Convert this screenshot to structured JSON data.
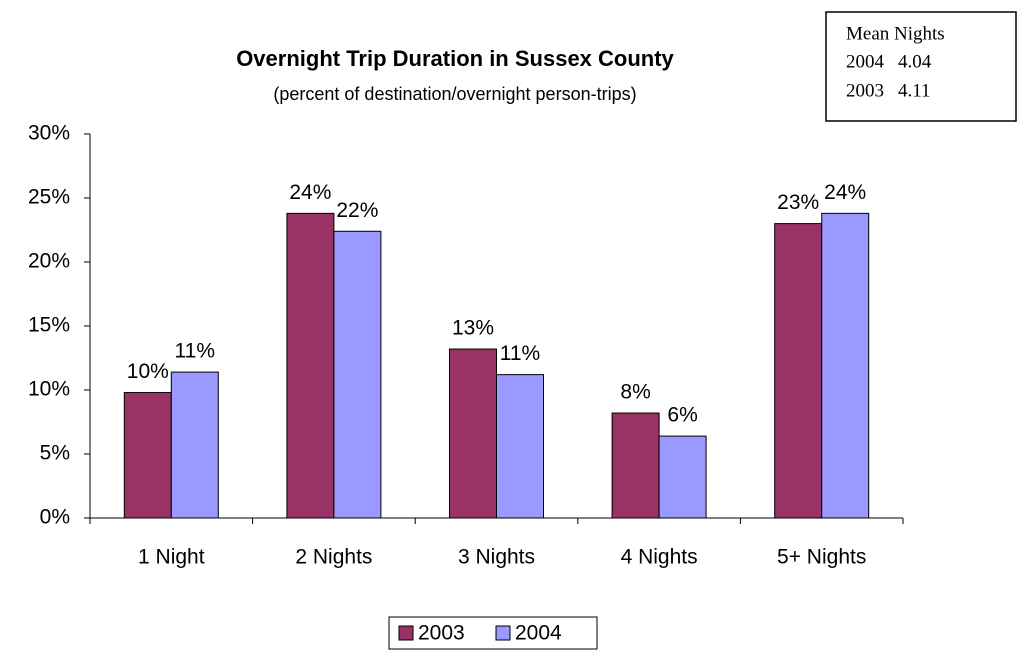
{
  "chart_data": {
    "type": "bar",
    "title": "Overnight Trip Duration in Sussex County",
    "subtitle": "(percent of destination/overnight person-trips)",
    "categories": [
      "1 Night",
      "2 Nights",
      "3 Nights",
      "4 Nights",
      "5+ Nights"
    ],
    "series": [
      {
        "name": "2003",
        "color": "#993366",
        "values": [
          9.8,
          23.8,
          13.2,
          8.2,
          23.0
        ],
        "value_labels": [
          "10%",
          "24%",
          "13%",
          "8%",
          "23%"
        ]
      },
      {
        "name": "2004",
        "color": "#9999ff",
        "values": [
          11.4,
          22.4,
          11.2,
          6.4,
          23.8
        ],
        "value_labels": [
          "11%",
          "22%",
          "11%",
          "6%",
          "24%"
        ]
      }
    ],
    "ylim": [
      0,
      30
    ],
    "yticks": [
      {
        "value": 0,
        "label": "0%"
      },
      {
        "value": 5,
        "label": "5%"
      },
      {
        "value": 10,
        "label": "10%"
      },
      {
        "value": 15,
        "label": "15%"
      },
      {
        "value": 20,
        "label": "20%"
      },
      {
        "value": 25,
        "label": "25%"
      },
      {
        "value": 30,
        "label": "30%"
      }
    ],
    "legend": "bottom",
    "annotation": {
      "title": "Mean Nights",
      "rows": [
        [
          "2004",
          4.04
        ],
        [
          "2003",
          4.11
        ]
      ]
    }
  }
}
